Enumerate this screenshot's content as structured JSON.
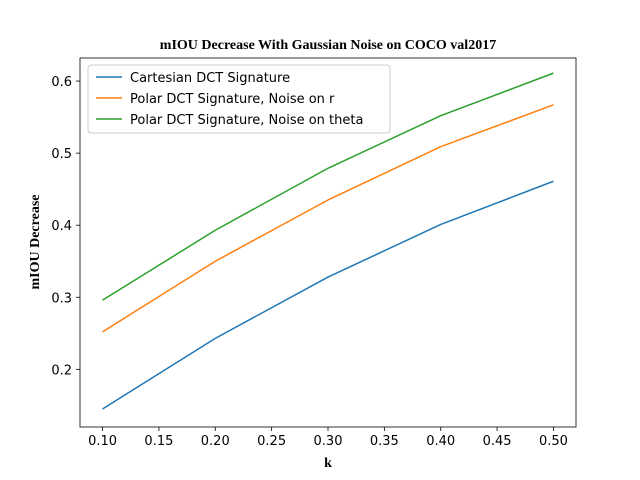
{
  "chart_data": {
    "type": "line",
    "title": "mIOU Decrease With Gaussian Noise on COCO val2017",
    "xlabel": "k",
    "ylabel": "mIOU Decrease",
    "x": [
      0.1,
      0.2,
      0.3,
      0.4,
      0.5
    ],
    "xlim": [
      0.08,
      0.52
    ],
    "ylim": [
      0.12,
      0.632
    ],
    "xticks": [
      0.1,
      0.15,
      0.2,
      0.25,
      0.3,
      0.35,
      0.4,
      0.45,
      0.5
    ],
    "xtick_labels": [
      "0.10",
      "0.15",
      "0.20",
      "0.25",
      "0.30",
      "0.35",
      "0.40",
      "0.45",
      "0.50"
    ],
    "yticks": [
      0.2,
      0.3,
      0.4,
      0.5,
      0.6
    ],
    "ytick_labels": [
      "0.2",
      "0.3",
      "0.4",
      "0.5",
      "0.6"
    ],
    "grid": false,
    "legend_position": "top-left",
    "series": [
      {
        "name": "Cartesian DCT Signature",
        "color": "#1f77b4",
        "values": [
          0.145,
          0.243,
          0.328,
          0.401,
          0.461
        ]
      },
      {
        "name": "Polar DCT Signature, Noise on r",
        "color": "#ff7f0e",
        "values": [
          0.252,
          0.35,
          0.435,
          0.509,
          0.567
        ]
      },
      {
        "name": "Polar DCT Signature, Noise on theta",
        "color": "#2ca02c",
        "values": [
          0.296,
          0.393,
          0.479,
          0.552,
          0.611
        ]
      }
    ]
  }
}
